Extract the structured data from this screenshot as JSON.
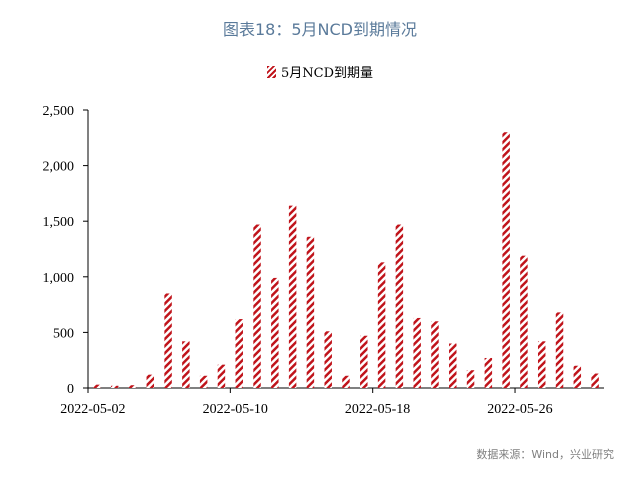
{
  "title": "图表18：5月NCD到期情况",
  "source": "数据来源：Wind，兴业研究",
  "colors": {
    "bar": "#c0141b",
    "title": "#5a7a9a",
    "source": "#7f7f7f",
    "axis": "#000000"
  },
  "chart_data": {
    "type": "bar",
    "x_tick_labels": [
      "2022-05-02",
      "2022-05-10",
      "2022-05-18",
      "2022-05-26"
    ],
    "y_tick_labels": [
      "0",
      "500",
      "1,000",
      "1,500",
      "2,000",
      "2,500"
    ],
    "ylim": [
      0,
      2500
    ],
    "series": [
      {
        "name": "5月NCD到期量",
        "values": [
          30,
          20,
          25,
          120,
          850,
          420,
          110,
          210,
          620,
          1470,
          990,
          1640,
          1360,
          510,
          110,
          470,
          1130,
          1470,
          630,
          600,
          400,
          160,
          270,
          2300,
          1190,
          420,
          680,
          200,
          130
        ]
      }
    ],
    "bar_pattern": "diagonal-hatch",
    "grid": false,
    "legend": "top-center"
  }
}
